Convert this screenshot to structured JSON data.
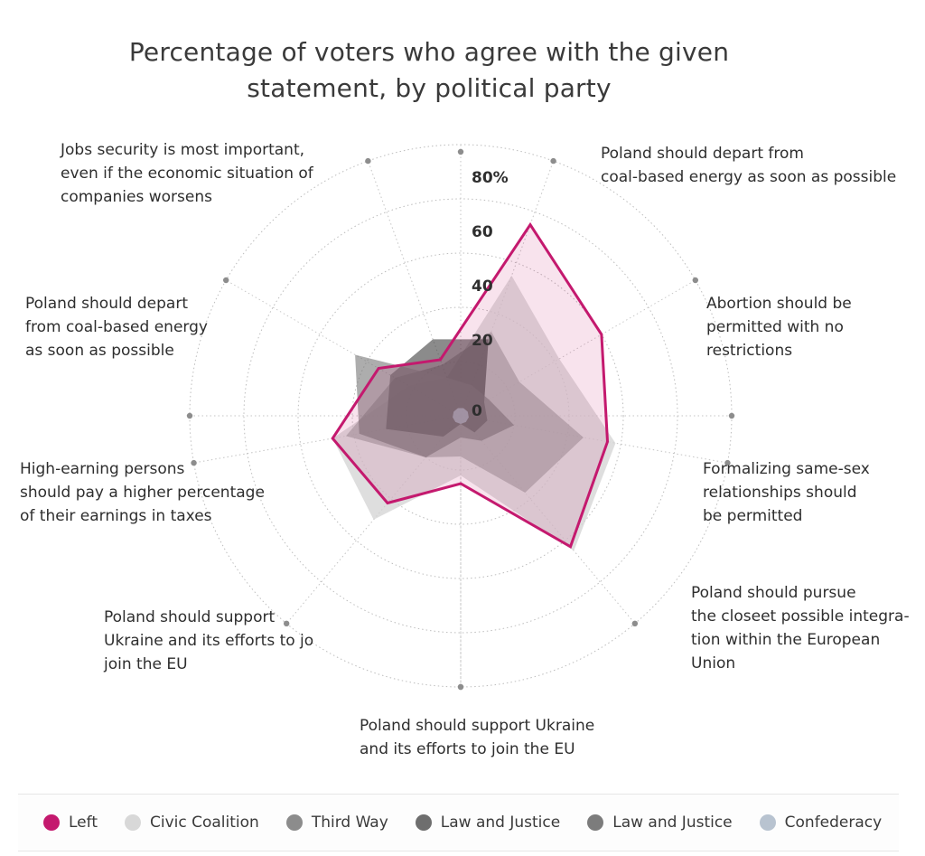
{
  "chart_data": {
    "type": "radar",
    "title_lines": [
      "Percentage of voters who agree with the given",
      "statement, by political party"
    ],
    "axes": [
      [
        "Poland should depart from",
        "coal-based energy as soon as possible"
      ],
      [
        "Abortion should be",
        "permitted with no",
        "restrictions"
      ],
      [
        "Formalizing same-sex",
        "relationships should",
        "be permitted"
      ],
      [
        "Poland should pursue",
        "the closeet possible integra-",
        "tion within the European",
        "Union"
      ],
      [
        "Poland should support Ukraine",
        "and its efforts to join the EU"
      ],
      [
        "Poland should support",
        "Ukraine and its efforts to jo",
        "join the EU"
      ],
      [
        "High-earning persons",
        "should pay a higher percentage",
        "of their earnings in taxes"
      ],
      [
        "Poland should depart",
        "from coal-based energy",
        "as soon as possible"
      ],
      [
        "Jobs security is most important,",
        "even if the economic situation of",
        "companies worsens"
      ]
    ],
    "tick_labels": [
      "0",
      "20",
      "40",
      "60",
      "80%"
    ],
    "tick_values": [
      0,
      20,
      40,
      60,
      80
    ],
    "rmax": 100,
    "series": [
      {
        "name": "Civic Coalition",
        "color": "#d3d3d3",
        "values": [
          55,
          42,
          58,
          65,
          22,
          50,
          48,
          22,
          15
        ]
      },
      {
        "name": "Third Way",
        "color": "#9c9c9c",
        "values": [
          33,
          25,
          46,
          37,
          15,
          20,
          43,
          28,
          20
        ]
      },
      {
        "name": "Law and Justice",
        "color": "#3e3e3e",
        "values": [
          30,
          10,
          10,
          8,
          3,
          10,
          28,
          30,
          30
        ]
      },
      {
        "name": "Law and Justice",
        "color": "#777777",
        "values": [
          12,
          12,
          20,
          12,
          8,
          20,
          38,
          45,
          15
        ]
      },
      {
        "name": "Confederacy",
        "color": "#b8c3d0",
        "values": [
          3,
          3,
          3,
          3,
          3,
          3,
          3,
          3,
          3
        ]
      },
      {
        "name": "Left",
        "color": "#c4196e",
        "values": [
          75,
          60,
          55,
          63,
          25,
          42,
          48,
          35,
          22
        ]
      }
    ]
  },
  "legend": [
    {
      "label": "Left",
      "color": "#c4196e"
    },
    {
      "label": "Civic Coalition",
      "color": "#d8d8d8"
    },
    {
      "label": "Third Way",
      "color": "#8c8c8c"
    },
    {
      "label": "Law and Justice",
      "color": "#6e6e6e"
    },
    {
      "label": "Law and Justice",
      "color": "#7c7c7c"
    },
    {
      "label": "Confederacy",
      "color": "#b8c3d0"
    }
  ]
}
